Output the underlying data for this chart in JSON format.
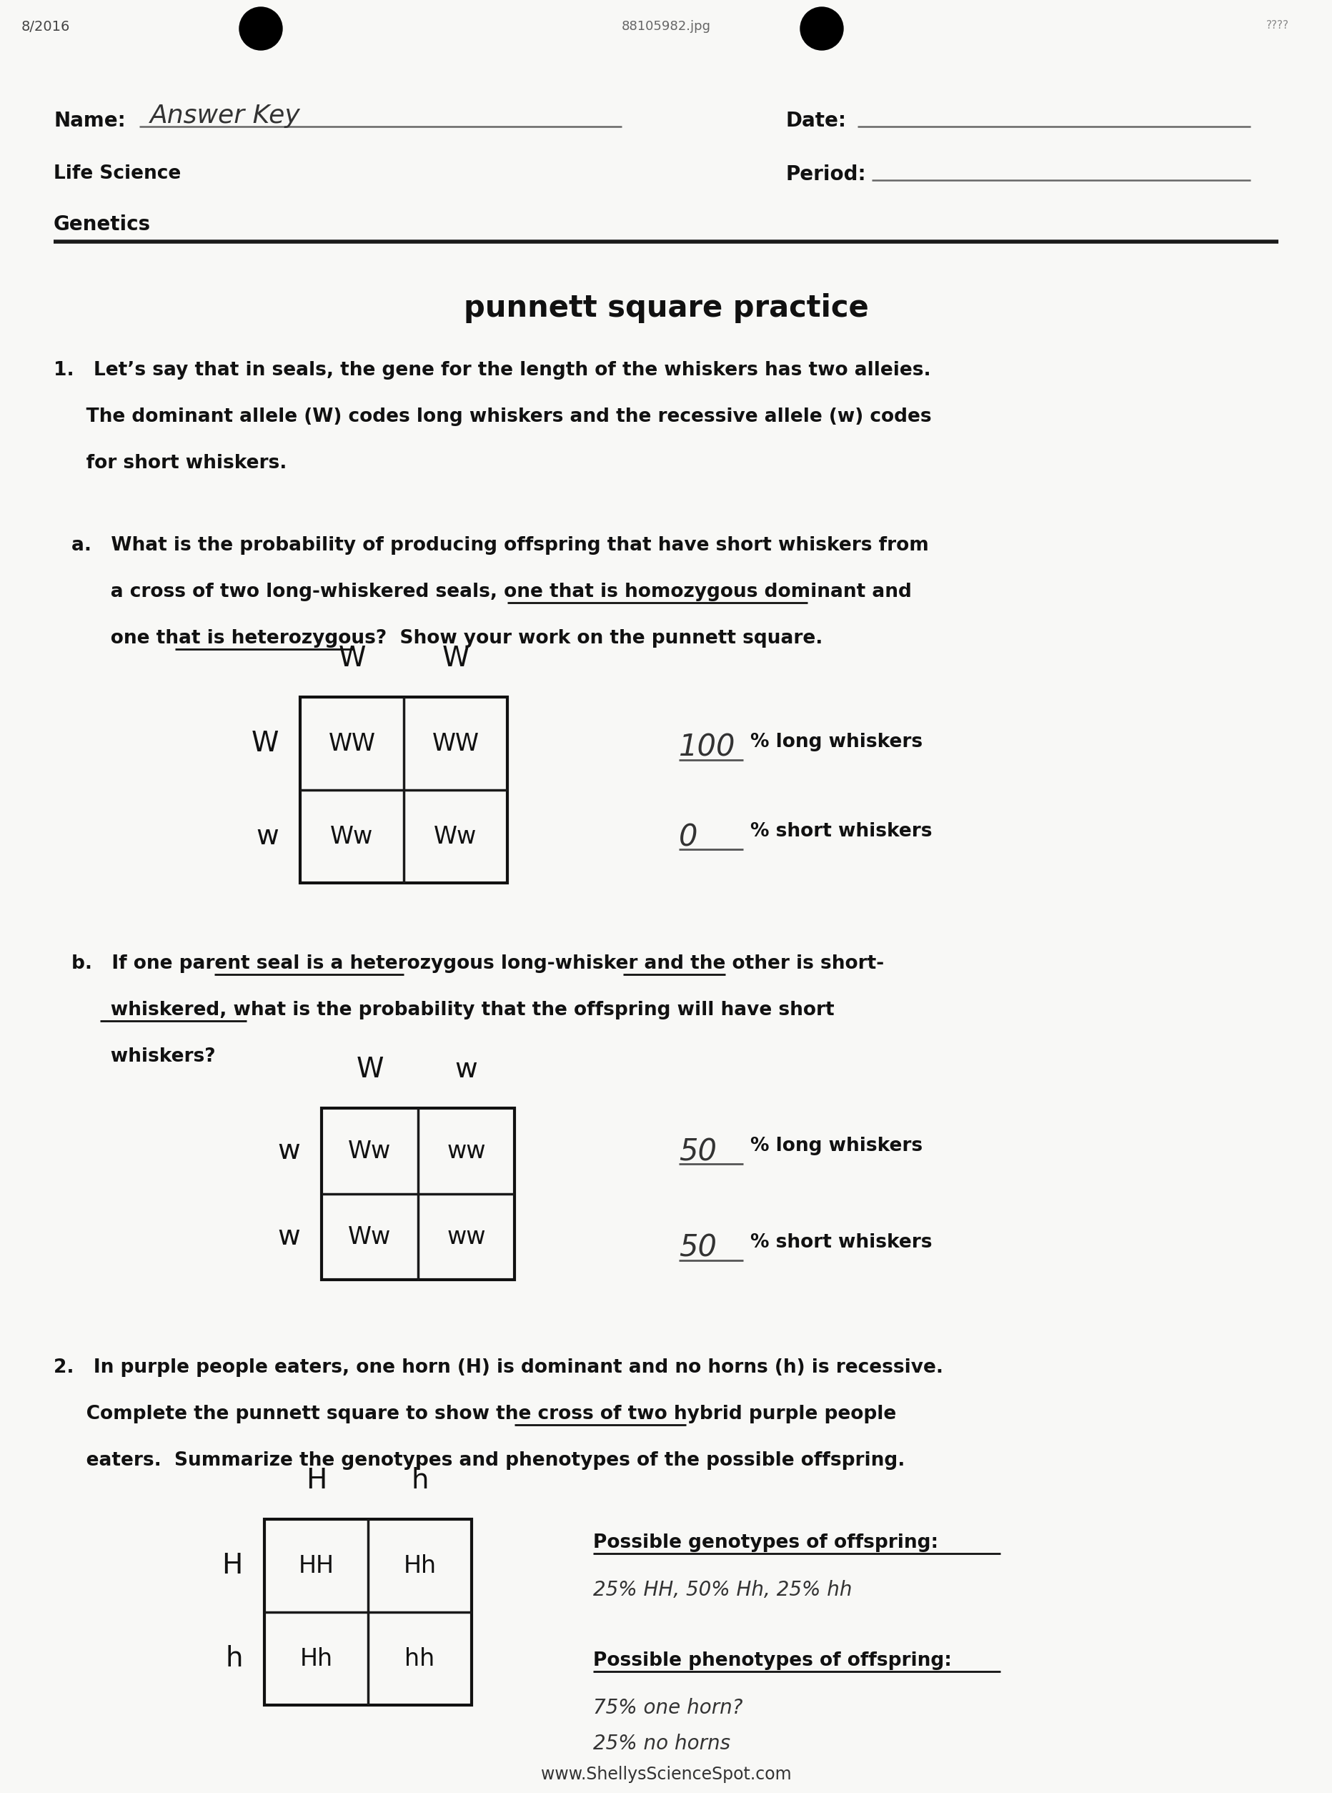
{
  "page_bg": "#f8f8f6",
  "title": "punnett square practice",
  "header_left_top": "8/2016",
  "header_center": "88105982.jpg",
  "name_label": "Name:",
  "name_value": "Answer Key",
  "date_label": "Date:",
  "life_science": "Life Science",
  "period_label": "Period:",
  "genetics": "Genetics",
  "q1_text_line1": "1.   Let’s say that in seals, the gene for the length of the whiskers has two alleies.",
  "q1_text_line2": "     The dominant allele (W) codes long whiskers and the recessive allele (w) codes",
  "q1_text_line3": "     for short whiskers.",
  "qa_text_line1": "a.   What is the probability of producing offspring that have short whiskers from",
  "qa_text_line2": "      a cross of two long-whiskered seals, one that is homozygous dominant and",
  "qa_text_line3": "      one that is heterozygous?  Show your work on the punnett square.",
  "punnett1_col_labels": [
    "W",
    "W"
  ],
  "punnett1_row_labels": [
    "W",
    "w"
  ],
  "punnett1_cells": [
    [
      "WW",
      "WW"
    ],
    [
      "Ww",
      "Ww"
    ]
  ],
  "punnett1_pct_long": "100",
  "punnett1_pct_short": "0",
  "qb_text_line1": "b.   If one parent seal is a heterozygous long-whisker and the other is short-",
  "qb_text_line2": "      whiskered, what is the probability that the offspring will have short",
  "qb_text_line3": "      whiskers?",
  "punnett2_col_labels": [
    "W",
    "w"
  ],
  "punnett2_row_labels": [
    "w",
    "w"
  ],
  "punnett2_cells": [
    [
      "Ww",
      "ww"
    ],
    [
      "Ww",
      "ww"
    ]
  ],
  "punnett2_pct_long": "50",
  "punnett2_pct_short": "50",
  "q2_text_line1": "2.   In purple people eaters, one horn (H) is dominant and no horns (h) is recessive.",
  "q2_text_line2": "     Complete the punnett square to show the cross of two hybrid purple people",
  "q2_text_line3": "     eaters.  Summarize the genotypes and phenotypes of the possible offspring.",
  "punnett3_col_labels": [
    "H",
    "h"
  ],
  "punnett3_row_labels": [
    "H",
    "h"
  ],
  "punnett3_cells": [
    [
      "HH",
      "Hh"
    ],
    [
      "Hh",
      "hh"
    ]
  ],
  "geno_label": "Possible genotypes of offspring:",
  "geno_value": "25% HH, 50% Hh, 25% hh",
  "pheno_label": "Possible phenotypes of offspring:",
  "pheno_value1": "75% one horn?",
  "pheno_value2": "25% no horns",
  "footer": "www.ShellysScienceSpot.com"
}
